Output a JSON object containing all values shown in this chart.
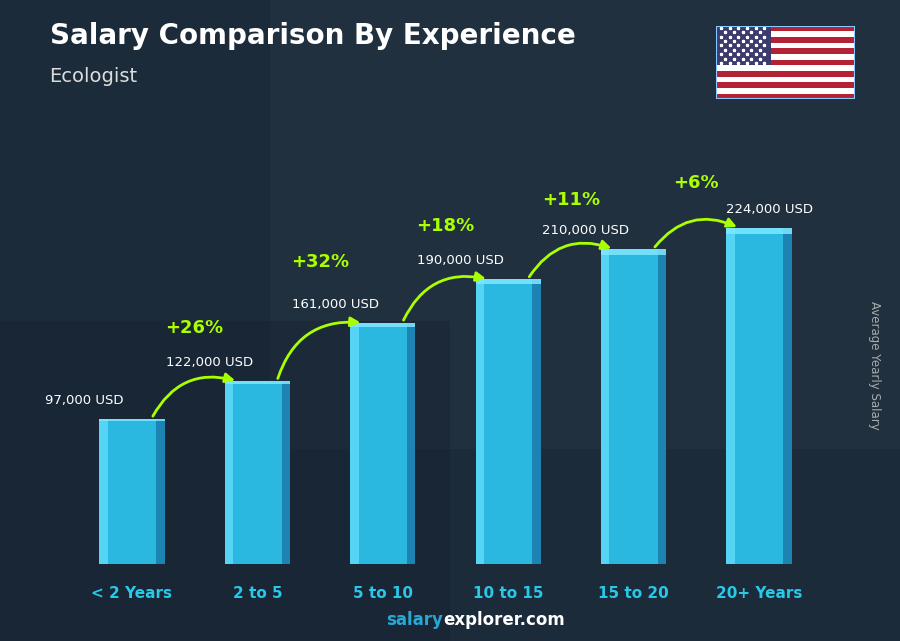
{
  "title": "Salary Comparison By Experience",
  "subtitle": "Ecologist",
  "ylabel": "Average Yearly Salary",
  "categories": [
    "< 2 Years",
    "2 to 5",
    "5 to 10",
    "10 to 15",
    "15 to 20",
    "20+ Years"
  ],
  "values": [
    97000,
    122000,
    161000,
    190000,
    210000,
    224000
  ],
  "value_labels": [
    "97,000 USD",
    "122,000 USD",
    "161,000 USD",
    "190,000 USD",
    "210,000 USD",
    "224,000 USD"
  ],
  "pct_changes": [
    "+26%",
    "+32%",
    "+18%",
    "+11%",
    "+6%"
  ],
  "bar_color_main": "#2ab8e0",
  "bar_color_light": "#55d4f5",
  "bar_color_dark": "#1a7aaa",
  "bar_color_top": "#80e8ff",
  "bg_color": "#1c2b3a",
  "title_color": "#ffffff",
  "subtitle_color": "#dddddd",
  "value_label_color": "#ffffff",
  "pct_color": "#aaff00",
  "cat_label_color": "#29c8e8",
  "ylabel_color": "#aaaaaa",
  "website_color_salary": "#29a8d4",
  "website_color_explorer": "#ffffff",
  "ylim_max": 265000,
  "bar_width": 0.52
}
